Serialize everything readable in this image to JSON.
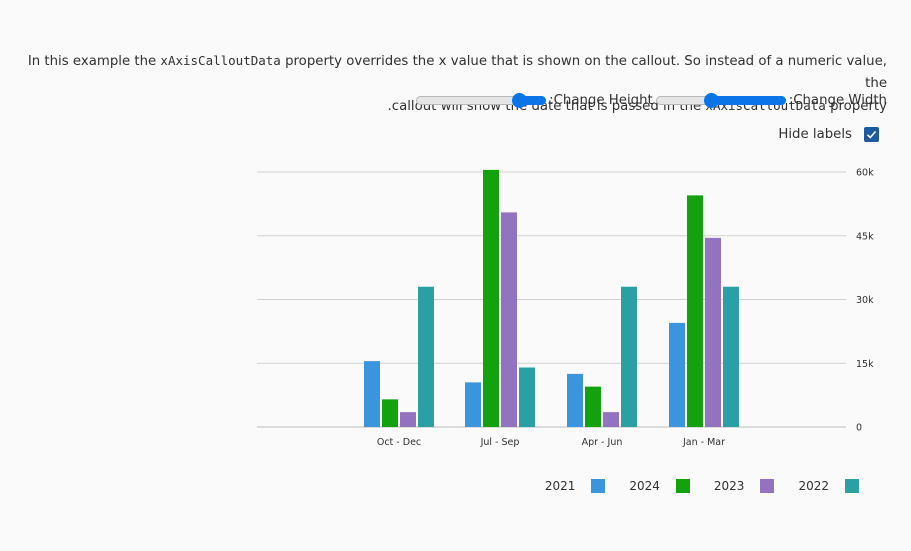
{
  "description": {
    "line1_pre": "In this example the ",
    "line1_code": "xAxisCalloutData",
    "line1_post": " property overrides the x value that is shown on the callout. So instead of a numeric value, the",
    "line2_pre": "callout will show the date that is passed in the ",
    "line2_code": "xAxisCalloutData",
    "line2_post": " property."
  },
  "controls": {
    "height_label": "Change Height:",
    "height_value": 0.8,
    "width_label": "Change Width:",
    "width_value": 0.43
  },
  "hide_labels": {
    "label": "Hide labels",
    "checked": true
  },
  "colors": {
    "2021": "#3b95dd",
    "2024": "#13a10e",
    "2023": "#9373c0",
    "2022": "#2aa0a4",
    "grid": "#d2d2d2",
    "checkbox": "#1e5a9e",
    "slider": "#0a74e8"
  },
  "chart_data": {
    "type": "bar",
    "categories": [
      "Oct - Dec",
      "Jul - Sep",
      "Apr - Jun",
      "Jan - Mar"
    ],
    "series": [
      {
        "name": "2021",
        "color": "#3b95dd",
        "values": [
          15500,
          10500,
          12500,
          24500
        ]
      },
      {
        "name": "2024",
        "color": "#13a10e",
        "values": [
          6500,
          60500,
          9500,
          54500
        ]
      },
      {
        "name": "2023",
        "color": "#9373c0",
        "values": [
          3500,
          50500,
          3500,
          44500
        ]
      },
      {
        "name": "2022",
        "color": "#2aa0a4",
        "values": [
          33000,
          14000,
          33000,
          33000
        ]
      }
    ],
    "yticks": [
      0,
      15000,
      30000,
      45000,
      60000
    ],
    "ytick_labels": [
      "0",
      "15k",
      "30k",
      "45k",
      "60k"
    ],
    "ylim": [
      0,
      60000
    ],
    "y_axis_position": "right",
    "grid": true,
    "legend_position": "bottom-right",
    "legend": [
      "2021",
      "2024",
      "2023",
      "2022"
    ]
  }
}
